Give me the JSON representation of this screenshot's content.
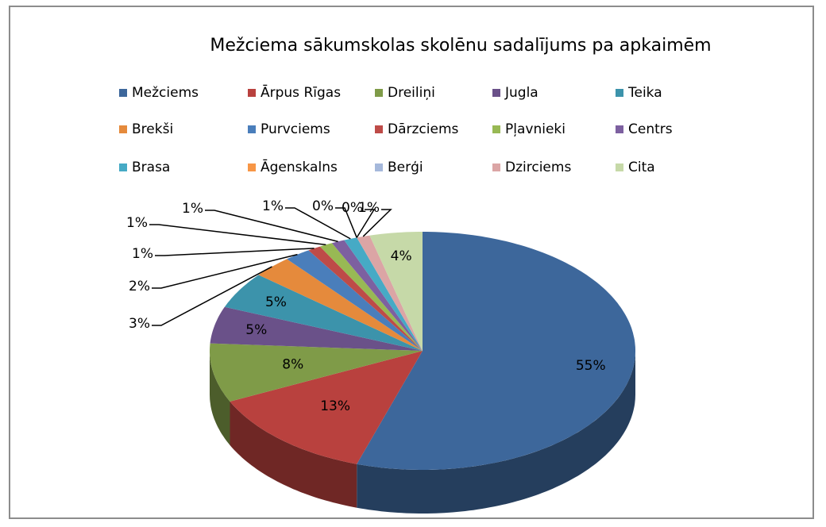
{
  "chart_data": {
    "type": "pie3d",
    "title": "Mežciema sākumskolas skolēnu sadalījums pa apkaimēm",
    "categories": [
      "Mežciems",
      "Ārpus Rīgas",
      "Dreiliņi",
      "Jugla",
      "Teika",
      "Brekši",
      "Purvciems",
      "Dārzciems",
      "Pļavnieki",
      "Centrs",
      "Brasa",
      "Āgenskalns",
      "Berģi",
      "Dzirciems",
      "Cita"
    ],
    "values": [
      55,
      13,
      8,
      5,
      5,
      3,
      2,
      1,
      1,
      1,
      1,
      0,
      0,
      1,
      4
    ],
    "value_labels": [
      "55%",
      "13%",
      "8%",
      "5%",
      "5%",
      "3%",
      "2%",
      "1%",
      "1%",
      "1%",
      "1%",
      "0%",
      "0%",
      "1%",
      "4%"
    ],
    "colors": [
      "#3d679b",
      "#b9413e",
      "#7f9b48",
      "#6a5189",
      "#3c93ab",
      "#e58a3c",
      "#4a7ebb",
      "#be4b48",
      "#98b954",
      "#7d60a0",
      "#46aac5",
      "#f79646",
      "#a5b8db",
      "#dba5a5",
      "#c6d9a8"
    ],
    "legend": "top"
  }
}
